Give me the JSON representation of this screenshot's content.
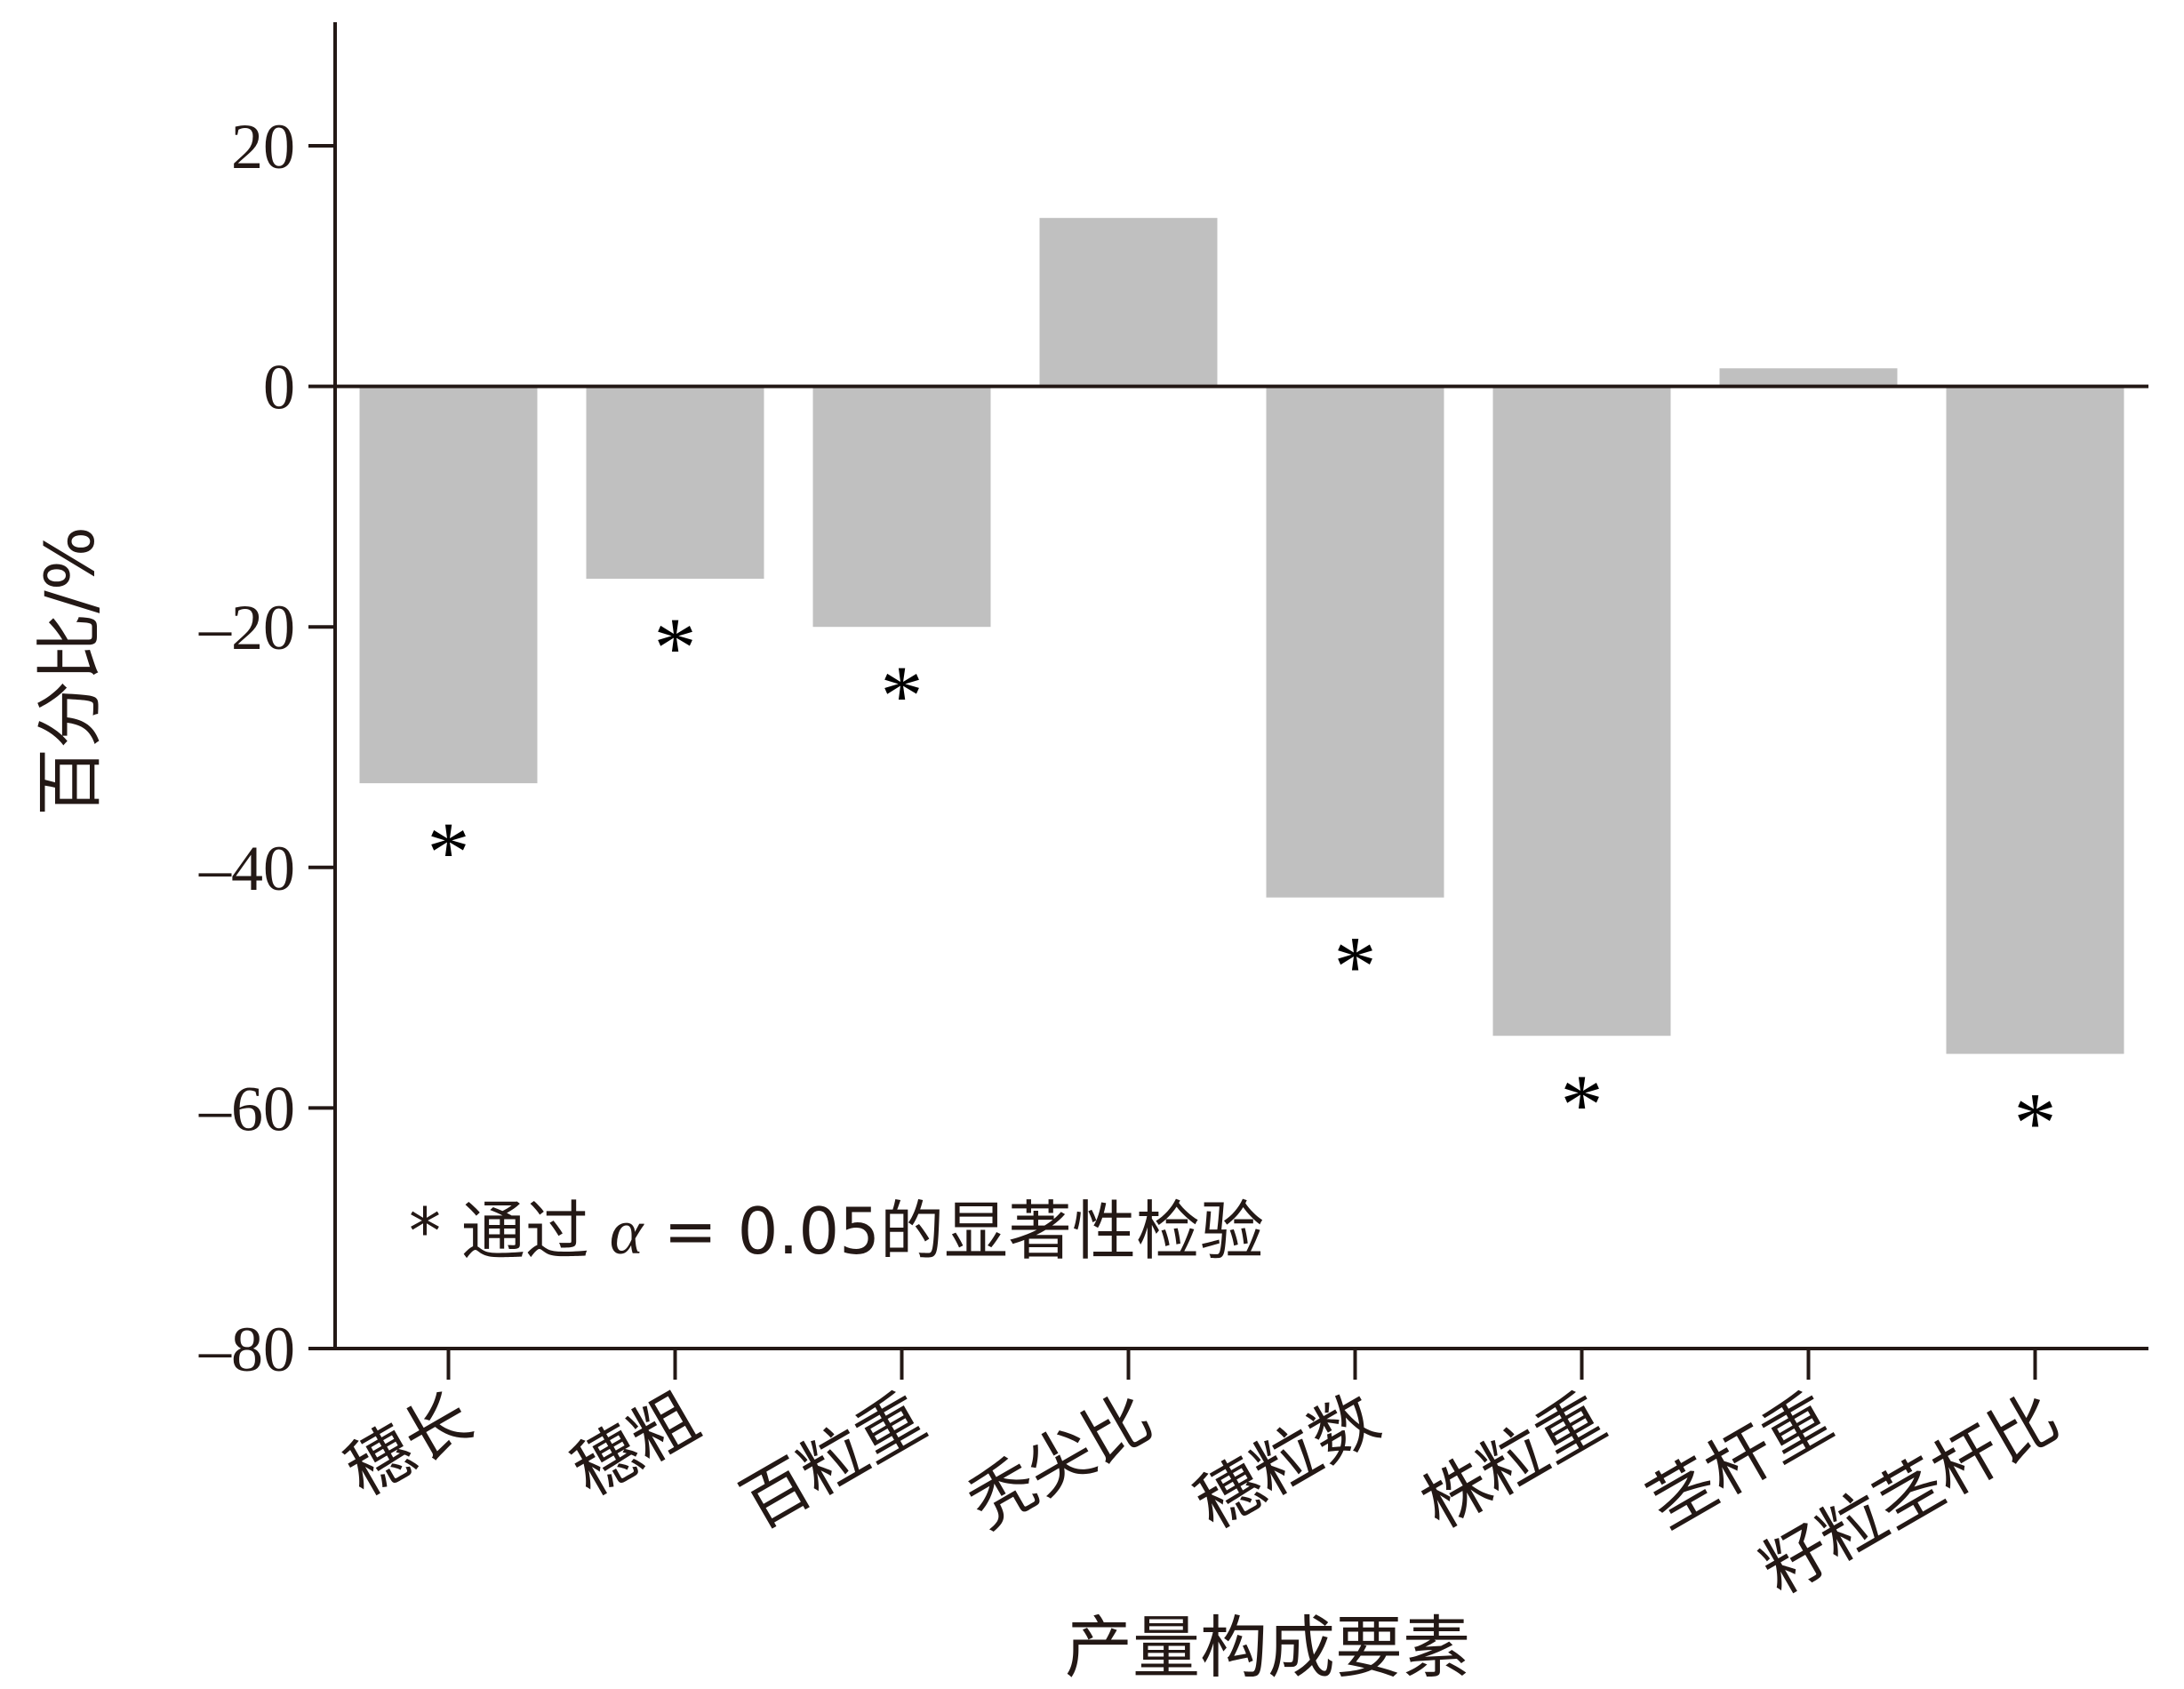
{
  "chart_data": {
    "type": "bar",
    "categories": [
      "穗长",
      "穗粗",
      "百粒重",
      "秃尖比",
      "穗粒数",
      "株粒重",
      "茎杆重",
      "籽粒茎杆比"
    ],
    "values": [
      -33,
      -16,
      -20,
      14,
      -42.5,
      -54,
      1.5,
      -55.5
    ],
    "significant": [
      true,
      true,
      true,
      false,
      true,
      true,
      false,
      true
    ],
    "significance_symbol": "*",
    "xlabel": "产量构成要素",
    "ylabel": "百分比/%",
    "ylim": [
      -80,
      30
    ],
    "yticks": [
      20,
      0,
      -20,
      -40,
      -60,
      -80
    ],
    "ytick_labels": [
      "20",
      "0",
      "–20",
      "–40",
      "–60",
      "–80"
    ],
    "legend_prefix": "* 通过 ",
    "legend_alpha": "α",
    "legend_suffix": " = 0.05的显著性检验",
    "bar_color": "#c0c0c0",
    "axis_color": "#231815"
  }
}
